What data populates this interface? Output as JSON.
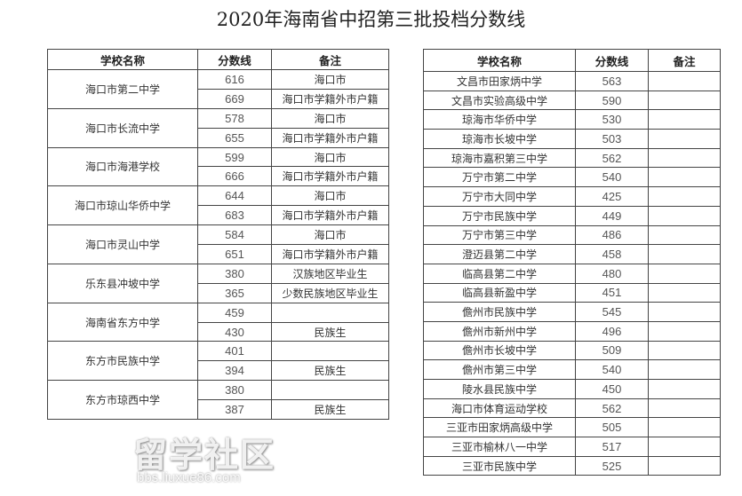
{
  "title": "2020年海南省中招第三批投档分数线",
  "headers": {
    "school": "学校名称",
    "score": "分数线",
    "note": "备注"
  },
  "left_table": [
    {
      "school": "海口市第二中学",
      "rows": [
        {
          "score": "616",
          "note": "海口市"
        },
        {
          "score": "669",
          "note": "海口市学籍外市户籍"
        }
      ]
    },
    {
      "school": "海口市长流中学",
      "rows": [
        {
          "score": "578",
          "note": "海口市"
        },
        {
          "score": "655",
          "note": "海口市学籍外市户籍"
        }
      ]
    },
    {
      "school": "海口市海港学校",
      "rows": [
        {
          "score": "599",
          "note": "海口市"
        },
        {
          "score": "666",
          "note": "海口市学籍外市户籍"
        }
      ]
    },
    {
      "school": "海口市琼山华侨中学",
      "rows": [
        {
          "score": "644",
          "note": "海口市"
        },
        {
          "score": "683",
          "note": "海口市学籍外市户籍"
        }
      ]
    },
    {
      "school": "海口市灵山中学",
      "rows": [
        {
          "score": "584",
          "note": "海口市"
        },
        {
          "score": "651",
          "note": "海口市学籍外市户籍"
        }
      ]
    },
    {
      "school": "乐东县冲坡中学",
      "rows": [
        {
          "score": "380",
          "note": "汉族地区毕业生"
        },
        {
          "score": "365",
          "note": "少数民族地区毕业生"
        }
      ]
    },
    {
      "school": "海南省东方中学",
      "rows": [
        {
          "score": "459",
          "note": ""
        },
        {
          "score": "430",
          "note": "民族生"
        }
      ]
    },
    {
      "school": "东方市民族中学",
      "rows": [
        {
          "score": "401",
          "note": ""
        },
        {
          "score": "394",
          "note": "民族生"
        }
      ]
    },
    {
      "school": "东方市琼西中学",
      "rows": [
        {
          "score": "380",
          "note": ""
        },
        {
          "score": "387",
          "note": "民族生"
        }
      ]
    }
  ],
  "right_table": [
    {
      "school": "文昌市田家炳中学",
      "score": "563",
      "note": ""
    },
    {
      "school": "文昌市实验高级中学",
      "score": "590",
      "note": ""
    },
    {
      "school": "琼海市华侨中学",
      "score": "530",
      "note": ""
    },
    {
      "school": "琼海市长坡中学",
      "score": "503",
      "note": ""
    },
    {
      "school": "琼海市嘉积第三中学",
      "score": "562",
      "note": ""
    },
    {
      "school": "万宁市第二中学",
      "score": "540",
      "note": ""
    },
    {
      "school": "万宁市大同中学",
      "score": "425",
      "note": ""
    },
    {
      "school": "万宁市民族中学",
      "score": "449",
      "note": ""
    },
    {
      "school": "万宁市第三中学",
      "score": "486",
      "note": ""
    },
    {
      "school": "澄迈县第二中学",
      "score": "458",
      "note": ""
    },
    {
      "school": "临高县第二中学",
      "score": "480",
      "note": ""
    },
    {
      "school": "临高县新盈中学",
      "score": "451",
      "note": ""
    },
    {
      "school": "儋州市民族中学",
      "score": "545",
      "note": ""
    },
    {
      "school": "儋州市新州中学",
      "score": "496",
      "note": ""
    },
    {
      "school": "儋州市长坡中学",
      "score": "509",
      "note": ""
    },
    {
      "school": "儋州市第三中学",
      "score": "540",
      "note": ""
    },
    {
      "school": "陵水县民族中学",
      "score": "450",
      "note": ""
    },
    {
      "school": "海口市体育运动学校",
      "score": "562",
      "note": ""
    },
    {
      "school": "三亚市田家炳高级中学",
      "score": "505",
      "note": ""
    },
    {
      "school": "三亚市榆林八一中学",
      "score": "517",
      "note": ""
    },
    {
      "school": "三亚市民族中学",
      "score": "525",
      "note": ""
    }
  ],
  "watermark": {
    "logo_text": "留学社区",
    "url_text": "bbs.liuxue86.com"
  }
}
